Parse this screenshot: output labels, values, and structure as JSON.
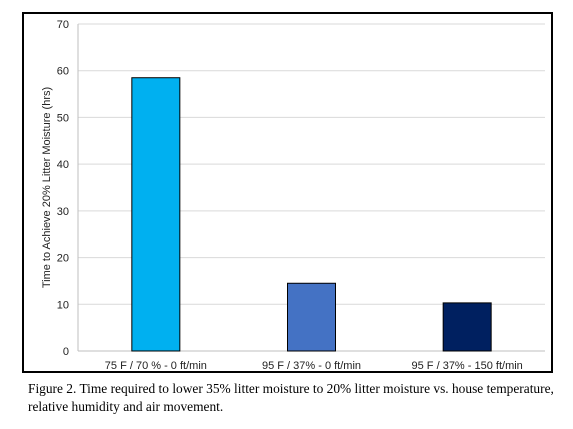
{
  "chart_data": {
    "type": "bar",
    "categories": [
      "75 F / 70 % - 0 ft/min",
      "95 F / 37% - 0 ft/min",
      "95 F / 37% - 150 ft/min"
    ],
    "values": [
      58.5,
      14.5,
      10.3
    ],
    "colors": [
      "#00b0f0",
      "#4472c4",
      "#002060"
    ],
    "ylabel": "Time to Achieve 20% Litter Moisture (hrs)",
    "xlabel": "",
    "ylim": [
      0,
      70
    ],
    "yticks": [
      0,
      10,
      20,
      30,
      40,
      50,
      60,
      70
    ],
    "grid": true
  },
  "caption": "Figure 2.  Time required to lower 35% litter moisture to 20% litter moisture vs. house temperature, relative humidity and air movement."
}
